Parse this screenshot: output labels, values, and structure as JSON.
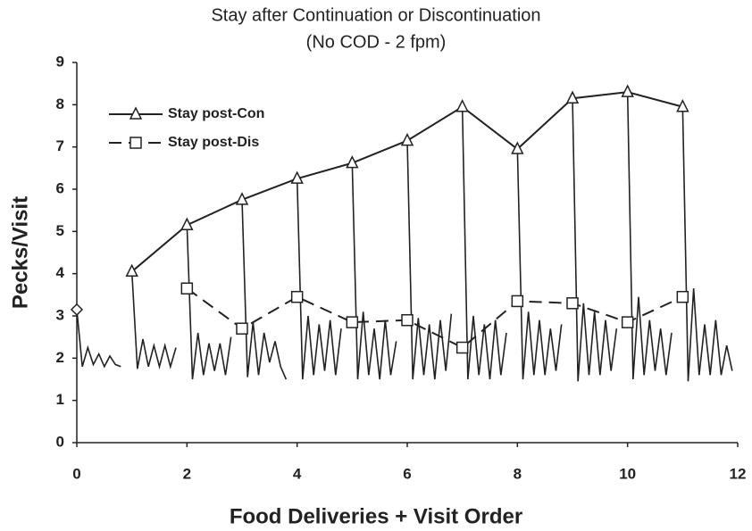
{
  "chart_data": {
    "type": "line",
    "title": "Stay after Continuation or Discontinuation",
    "subtitle": "(No COD - 2 fpm)",
    "x_label": "Food Deliveries + Visit Order",
    "y_label": "Pecks/Visit",
    "xlim": [
      0,
      12
    ],
    "xticks": [
      0,
      2,
      4,
      6,
      8,
      10,
      12
    ],
    "ylim": [
      0,
      9
    ],
    "yticks": [
      0,
      1,
      2,
      3,
      4,
      5,
      6,
      7,
      8,
      9
    ],
    "grid": false,
    "legend": "upper left",
    "series": [
      {
        "name": "Stay post-Con",
        "color": "#222222",
        "marker": "triangle",
        "line_style": "solid",
        "x": [
          1,
          2,
          3,
          4,
          5,
          6,
          7,
          8,
          9,
          10,
          11
        ],
        "values": [
          4.05,
          5.15,
          5.75,
          6.25,
          6.62,
          7.15,
          7.95,
          6.95,
          8.15,
          8.3,
          7.95
        ]
      },
      {
        "name": "Stay post-Dis",
        "color": "#222222",
        "marker": "square",
        "line_style": "dashed",
        "x": [
          2,
          3,
          4,
          5,
          6,
          7,
          8,
          9,
          10,
          11
        ],
        "values": [
          3.65,
          2.7,
          3.45,
          2.85,
          2.9,
          2.25,
          3.35,
          3.3,
          2.85,
          3.45
        ]
      },
      {
        "color": "#222222",
        "marker": "diamond",
        "line_style": "none",
        "x": [
          0
        ],
        "values": [
          3.15
        ]
      },
      {
        "color": "#222222",
        "marker": "none",
        "line_style": "solid",
        "x": [
          0,
          0.1,
          0.2,
          0.3,
          0.4,
          0.5,
          0.6,
          0.7,
          0.8
        ],
        "values": [
          3.15,
          1.8,
          2.25,
          1.85,
          2.1,
          1.8,
          2.05,
          1.85,
          1.8
        ]
      },
      {
        "color": "#222222",
        "marker": "none",
        "line_style": "solid",
        "x": [
          1,
          1.1,
          1.2,
          1.3,
          1.4,
          1.5,
          1.6,
          1.7,
          1.8
        ],
        "values": [
          4.05,
          1.75,
          2.45,
          1.8,
          2.3,
          1.8,
          2.3,
          1.8,
          2.25
        ]
      },
      {
        "color": "#222222",
        "marker": "none",
        "line_style": "solid",
        "x": [
          2,
          2.1,
          2.2,
          2.3,
          2.4,
          2.5,
          2.6,
          2.7,
          2.8
        ],
        "values": [
          5.15,
          1.5,
          2.6,
          1.6,
          2.35,
          1.7,
          2.35,
          1.6,
          2.5
        ]
      },
      {
        "color": "#222222",
        "marker": "none",
        "line_style": "solid",
        "x": [
          3,
          3.1,
          3.2,
          3.3,
          3.4,
          3.5,
          3.6,
          3.7,
          3.8
        ],
        "values": [
          5.75,
          1.55,
          2.85,
          1.6,
          2.6,
          1.9,
          2.4,
          1.8,
          1.5
        ]
      },
      {
        "color": "#222222",
        "marker": "none",
        "line_style": "solid",
        "x": [
          4,
          4.1,
          4.2,
          4.3,
          4.4,
          4.5,
          4.6,
          4.7,
          4.8
        ],
        "values": [
          6.25,
          1.5,
          3.0,
          1.6,
          2.8,
          1.7,
          2.9,
          1.6,
          2.7
        ]
      },
      {
        "color": "#222222",
        "marker": "none",
        "line_style": "solid",
        "x": [
          5,
          5.1,
          5.2,
          5.3,
          5.4,
          5.5,
          5.6,
          5.7,
          5.8
        ],
        "values": [
          6.62,
          1.5,
          3.1,
          1.6,
          2.7,
          1.5,
          2.9,
          1.6,
          2.4
        ]
      },
      {
        "color": "#222222",
        "marker": "none",
        "line_style": "solid",
        "x": [
          6,
          6.1,
          6.2,
          6.3,
          6.4,
          6.5,
          6.6,
          6.7,
          6.8
        ],
        "values": [
          7.15,
          1.5,
          2.95,
          1.6,
          2.8,
          1.5,
          2.9,
          1.7,
          3.05
        ]
      },
      {
        "color": "#222222",
        "marker": "none",
        "line_style": "solid",
        "x": [
          7,
          7.1,
          7.2,
          7.3,
          7.4,
          7.5,
          7.6,
          7.7,
          7.8
        ],
        "values": [
          7.95,
          1.5,
          3.0,
          1.6,
          2.8,
          1.5,
          2.9,
          1.6,
          2.6
        ]
      },
      {
        "color": "#222222",
        "marker": "none",
        "line_style": "solid",
        "x": [
          8,
          8.1,
          8.2,
          8.3,
          8.4,
          8.5,
          8.6,
          8.7,
          8.8
        ],
        "values": [
          6.95,
          1.5,
          3.1,
          1.6,
          2.9,
          1.6,
          2.7,
          1.7,
          2.8
        ]
      },
      {
        "color": "#222222",
        "marker": "none",
        "line_style": "solid",
        "x": [
          9,
          9.1,
          9.2,
          9.3,
          9.4,
          9.5,
          9.6,
          9.7,
          9.8
        ],
        "values": [
          8.15,
          1.45,
          3.3,
          1.6,
          3.1,
          1.6,
          2.9,
          1.7,
          2.7
        ]
      },
      {
        "color": "#222222",
        "marker": "none",
        "line_style": "solid",
        "x": [
          10,
          10.1,
          10.2,
          10.3,
          10.4,
          10.5,
          10.6,
          10.7,
          10.8
        ],
        "values": [
          8.3,
          1.5,
          3.45,
          1.6,
          2.9,
          1.7,
          2.7,
          1.6,
          2.6
        ]
      },
      {
        "color": "#222222",
        "marker": "none",
        "line_style": "solid",
        "x": [
          11,
          11.1,
          11.2,
          11.3,
          11.4,
          11.5,
          11.6,
          11.7,
          11.8,
          11.9
        ],
        "values": [
          7.95,
          1.45,
          3.65,
          1.6,
          2.8,
          1.6,
          2.9,
          1.6,
          2.3,
          1.7
        ]
      }
    ]
  }
}
